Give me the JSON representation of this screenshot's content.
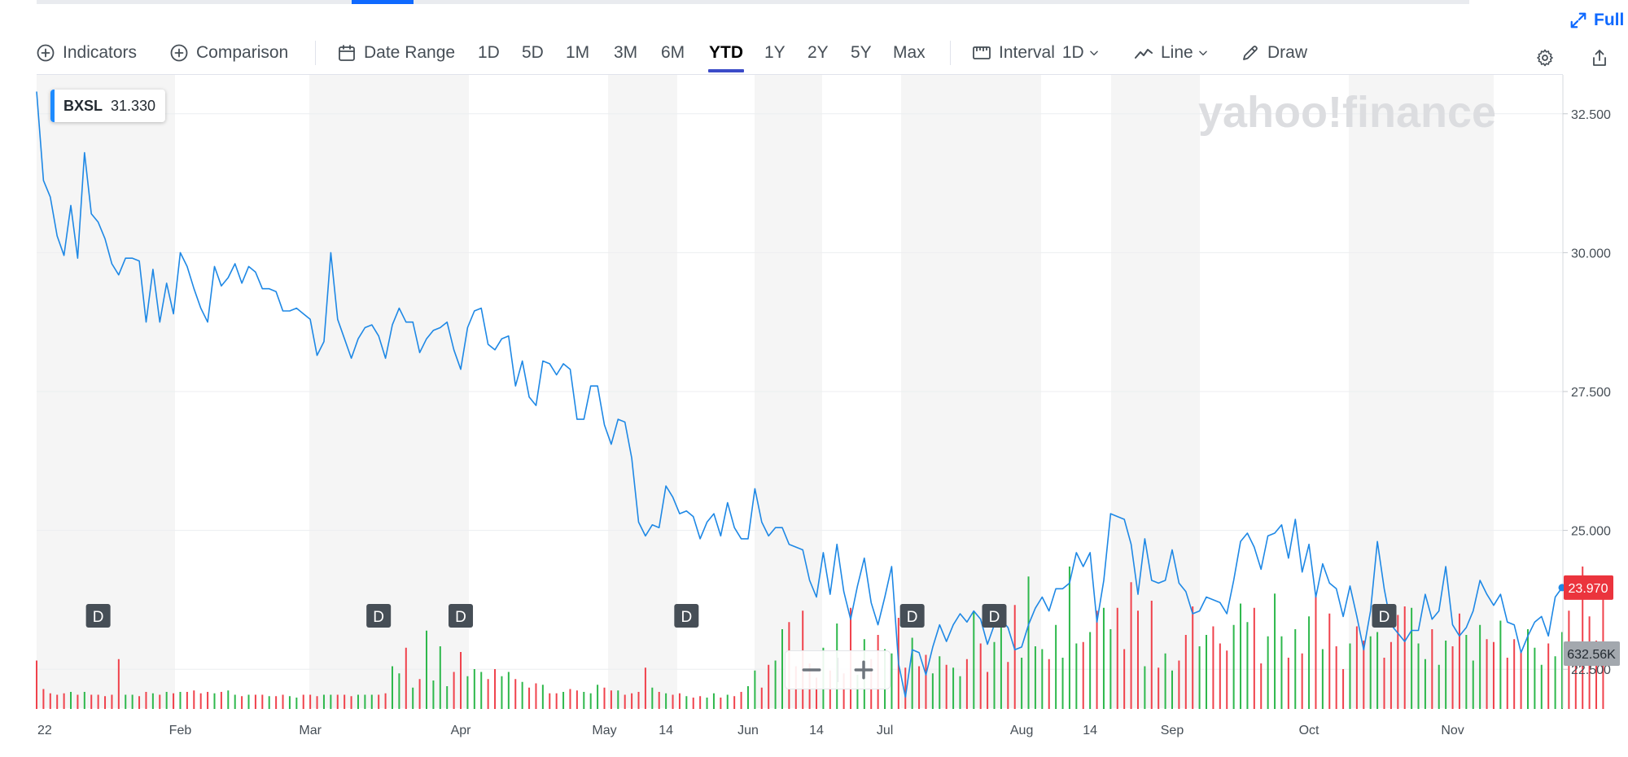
{
  "header": {
    "fullscreen_label": "Full s",
    "progress_fraction": 0.043
  },
  "toolbar": {
    "indicators_label": "Indicators",
    "comparison_label": "Comparison",
    "date_range_label": "Date Range",
    "ranges": [
      "1D",
      "5D",
      "1M",
      "3M",
      "6M",
      "YTD",
      "1Y",
      "2Y",
      "5Y",
      "Max"
    ],
    "active_range": "YTD",
    "interval_label": "Interval",
    "interval_value": "1D",
    "chart_type_label": "Line",
    "draw_label": "Draw",
    "icons": [
      "plus-circle-icon",
      "calendar-icon",
      "ruler-icon",
      "line-chart-icon",
      "chevron-down-icon",
      "pencil-icon",
      "gear-icon",
      "share-icon",
      "expand-icon"
    ]
  },
  "ticker": {
    "symbol": "BXSL",
    "value": "31.330"
  },
  "watermark": "yahoo!finance",
  "price_axis": {
    "ticks": [
      "32.500",
      "30.000",
      "27.500",
      "25.000",
      "22.500"
    ],
    "last_price_label": "23.970",
    "volume_label": "632.56K"
  },
  "colors": {
    "line": "#1e88e5",
    "up_volume": "#2eb84c",
    "down_volume": "#f0424c",
    "price_tag": "#eb343d",
    "volume_tag": "#a3a8ae",
    "marker": "#464e56",
    "band": "#f5f5f5"
  },
  "chart_data": {
    "type": "line",
    "ylim": [
      21.8,
      33.2
    ],
    "x_tick_labels": [
      "22",
      "Feb",
      "Mar",
      "Apr",
      "May",
      "14",
      "Jun",
      "14",
      "Jul",
      "Aug",
      "14",
      "Sep",
      "Oct",
      "Nov"
    ],
    "dividend_marker_label": "D",
    "series": [
      {
        "values": [
          32.9,
          31.3,
          31.0,
          30.3,
          29.95,
          30.85,
          29.9,
          31.8,
          30.7,
          30.55,
          30.25,
          29.8,
          29.6,
          29.9,
          29.9,
          29.85,
          28.75,
          29.7,
          28.75,
          29.45,
          28.9,
          30.0,
          29.75,
          29.35,
          29.0,
          28.75,
          29.75,
          29.4,
          29.55,
          29.8,
          29.45,
          29.75,
          29.65,
          29.35,
          29.35,
          29.3,
          28.95,
          28.95,
          29.0,
          28.9,
          28.8,
          28.15,
          28.4,
          30.0,
          28.8,
          28.45,
          28.1,
          28.45,
          28.65,
          28.7,
          28.5,
          28.1,
          28.7,
          29.0,
          28.75,
          28.75,
          28.2,
          28.45,
          28.6,
          28.65,
          28.75,
          28.25,
          27.9,
          28.65,
          28.95,
          29.0,
          28.35,
          28.25,
          28.45,
          28.5,
          27.6,
          28.05,
          27.4,
          27.25,
          28.05,
          28.0,
          27.8,
          28.0,
          27.9,
          27.0,
          27.0,
          27.6,
          27.6,
          26.9,
          26.55,
          27.0,
          26.95,
          26.3,
          25.15,
          24.9,
          25.1,
          25.05,
          25.8,
          25.6,
          25.3,
          25.35,
          25.25,
          24.85,
          25.15,
          25.3,
          24.9,
          25.5,
          25.05,
          24.85,
          24.85,
          25.75,
          25.15,
          24.9,
          25.05,
          25.05,
          24.75,
          24.7,
          24.65,
          24.1,
          23.8,
          24.6,
          23.85,
          24.75,
          23.9,
          23.4,
          24.0,
          24.5,
          23.7,
          23.3,
          23.8,
          24.35,
          22.6,
          22.0,
          22.85,
          22.8,
          22.4,
          22.9,
          23.3,
          23.0,
          23.3,
          23.5,
          23.35,
          23.55,
          23.4,
          22.95,
          23.3,
          23.4,
          23.25,
          22.85,
          22.9,
          23.3,
          23.6,
          23.8,
          23.55,
          23.95,
          23.95,
          24.05,
          24.6,
          24.35,
          24.6,
          23.35,
          24.1,
          25.3,
          25.25,
          25.2,
          24.75,
          23.85,
          24.85,
          24.1,
          24.05,
          24.1,
          24.65,
          24.05,
          23.9,
          23.5,
          23.55,
          23.8,
          23.75,
          23.7,
          23.5,
          24.1,
          24.8,
          24.95,
          24.7,
          24.3,
          24.9,
          24.95,
          25.1,
          24.5,
          25.2,
          24.25,
          24.75,
          23.8,
          24.4,
          24.05,
          23.95,
          23.45,
          24.0,
          23.45,
          22.85,
          23.55,
          24.8,
          23.95,
          23.3,
          23.15,
          23.0,
          23.2,
          23.2,
          23.85,
          23.4,
          23.55,
          24.35,
          23.3,
          23.1,
          23.25,
          23.55,
          24.1,
          23.85,
          23.65,
          23.85,
          23.35,
          23.3,
          22.8,
          23.1,
          23.35,
          23.45,
          23.1,
          23.8,
          23.97
        ]
      }
    ],
    "volume": [
      {
        "name": "Volume",
        "values": [
          0.34,
          0.14,
          0.11,
          0.1,
          0.11,
          0.12,
          0.1,
          0.12,
          0.1,
          0.1,
          0.09,
          0.1,
          0.35,
          0.1,
          0.1,
          0.09,
          0.12,
          0.11,
          0.1,
          0.12,
          0.11,
          0.12,
          0.12,
          0.13,
          0.11,
          0.12,
          0.11,
          0.12,
          0.13,
          0.1,
          0.09,
          0.1,
          0.1,
          0.1,
          0.09,
          0.09,
          0.1,
          0.09,
          0.08,
          0.1,
          0.1,
          0.09,
          0.1,
          0.1,
          0.1,
          0.1,
          0.09,
          0.1,
          0.1,
          0.1,
          0.1,
          0.11,
          0.3,
          0.25,
          0.43,
          0.15,
          0.21,
          0.55,
          0.2,
          0.44,
          0.16,
          0.26,
          0.4,
          0.23,
          0.28,
          0.26,
          0.21,
          0.28,
          0.23,
          0.26,
          0.21,
          0.19,
          0.15,
          0.18,
          0.17,
          0.11,
          0.11,
          0.12,
          0.14,
          0.13,
          0.12,
          0.11,
          0.17,
          0.15,
          0.13,
          0.13,
          0.1,
          0.11,
          0.12,
          0.29,
          0.15,
          0.12,
          0.11,
          0.1,
          0.11,
          0.09,
          0.08,
          0.09,
          0.08,
          0.11,
          0.08,
          0.1,
          0.09,
          0.12,
          0.16,
          0.27,
          0.15,
          0.31,
          0.34,
          0.56,
          0.61,
          0.3,
          0.69,
          0.32,
          0.22,
          0.43,
          0.27,
          0.6,
          0.25,
          0.71,
          0.24,
          0.49,
          0.35,
          0.52,
          0.42,
          0.39,
          0.64,
          0.29,
          0.5,
          0.3,
          0.38,
          0.25,
          0.37,
          0.31,
          0.29,
          0.23,
          0.35,
          0.68,
          0.46,
          0.26,
          0.47,
          0.64,
          0.33,
          0.73,
          0.36,
          0.93,
          0.44,
          0.42,
          0.35,
          0.59,
          0.36,
          1.0,
          0.46,
          0.47,
          0.54,
          0.69,
          0.71,
          0.56,
          0.71,
          0.42,
          0.89,
          0.69,
          0.3,
          0.76,
          0.29,
          0.39,
          0.27,
          0.34,
          0.52,
          0.72,
          0.44,
          0.52,
          0.58,
          0.46,
          0.41,
          0.59,
          0.74,
          0.61,
          0.71,
          0.32,
          0.51,
          0.81,
          0.51,
          0.36,
          0.56,
          0.39,
          0.65,
          0.8,
          0.42,
          0.67,
          0.44,
          0.28,
          0.46,
          0.58,
          0.48,
          0.51,
          0.54,
          0.36,
          0.47,
          0.66,
          0.72,
          0.71,
          0.46,
          0.35,
          0.56,
          0.31,
          0.48,
          0.44,
          0.67,
          0.52,
          0.34,
          0.59,
          0.49,
          0.47,
          0.62,
          0.36,
          0.49,
          0.4,
          0.56,
          0.43,
          0.31,
          0.46,
          0.37,
          0.54,
          0.69,
          0.39,
          1.0,
          0.65,
          0.48,
          0.78
        ]
      }
    ]
  }
}
